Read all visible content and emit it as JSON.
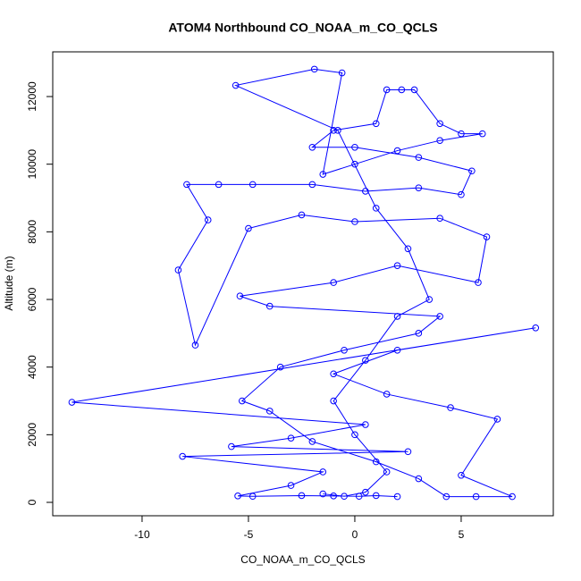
{
  "chart_data": {
    "type": "line",
    "title": "ATOM4 Northbound CO_NOAA_m_CO_QCLS",
    "x_label": "CO_NOAA_m_CO_QCLS",
    "y_label": "Altitude (m)",
    "xlim": [
      -14.2,
      9.33
    ],
    "ylim": [
      -396,
      13322
    ],
    "xticks": [
      -10,
      -5,
      0,
      5
    ],
    "yticks": [
      0,
      2000,
      4000,
      6000,
      8000,
      10000,
      12000
    ],
    "markers": true,
    "series": [
      {
        "color": "#0000ff",
        "x": [
          2.0,
          1.0,
          0.2,
          -1.0,
          -2.5,
          -4.8,
          -5.5,
          -3.0,
          -1.5,
          -8.1,
          2.5,
          -5.8,
          -3.0,
          0.5,
          -13.3,
          8.5,
          2.0,
          -1.0,
          1.5,
          4.5,
          6.7,
          5.0,
          7.4,
          5.7,
          4.3,
          3.0,
          1.0,
          -2.0,
          -4.0,
          -5.3,
          -3.5,
          -0.5,
          3.0,
          4.0,
          -4.0,
          -5.4,
          -1.0,
          2.0,
          5.8,
          6.2,
          4.0,
          0.0,
          -2.5,
          -5.0,
          -7.5,
          -8.3,
          -6.9,
          -7.9,
          -6.4,
          -4.8,
          -2.0,
          0.5,
          3.0,
          5.0,
          5.5,
          3.0,
          0.0,
          -2.0,
          -1.0,
          1.0,
          1.5,
          2.2,
          2.8,
          4.0,
          5.0,
          6.0,
          4.0,
          2.0,
          0.0,
          -1.5,
          -0.6,
          -1.9,
          -5.6,
          -0.8,
          1.0,
          2.5,
          3.5,
          2.0,
          0.5,
          -1.0,
          0.0,
          1.5,
          0.5,
          -0.5,
          -1.5
        ],
        "values": [
          170,
          200,
          180,
          190,
          200,
          180,
          190,
          500,
          900,
          1360,
          1500,
          1650,
          1900,
          2300,
          2960,
          5160,
          4500,
          3800,
          3200,
          2800,
          2460,
          800,
          170,
          170,
          170,
          700,
          1200,
          1800,
          2700,
          3000,
          4000,
          4500,
          5000,
          5500,
          5800,
          6100,
          6500,
          7000,
          6500,
          7850,
          8400,
          8300,
          8500,
          8100,
          4650,
          6870,
          8350,
          9400,
          9400,
          9400,
          9400,
          9200,
          9300,
          9100,
          9800,
          10200,
          10500,
          10500,
          11000,
          11200,
          12200,
          12200,
          12200,
          11200,
          10900,
          10900,
          10700,
          10400,
          10000,
          9700,
          12700,
          12810,
          12330,
          11000,
          8700,
          7500,
          6000,
          5500,
          4200,
          3000,
          2000,
          900,
          300,
          180,
          250
        ]
      }
    ]
  }
}
